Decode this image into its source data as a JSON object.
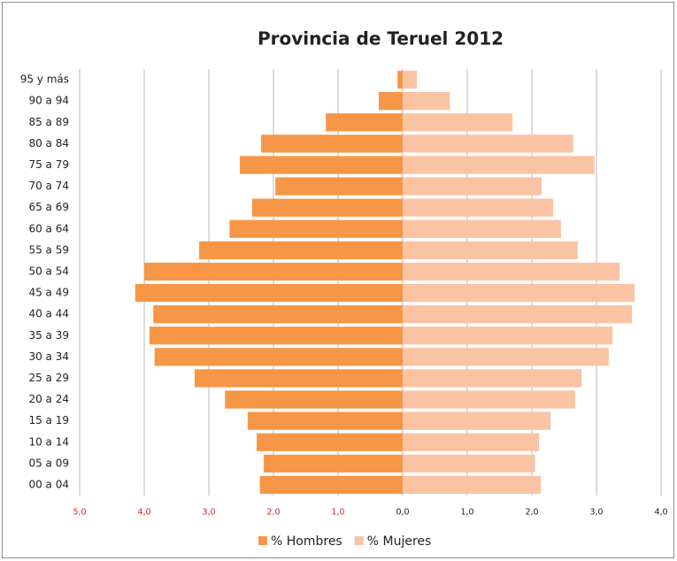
{
  "chart_data": {
    "type": "pyramid",
    "title": "Provincia de Teruel 2012",
    "categories": [
      "00 a 04",
      "05 a 09",
      "10 a 14",
      "15 a 19",
      "20 a 24",
      "25 a 29",
      "30 a 34",
      "35 a 39",
      "40 a 44",
      "45 a 49",
      "50 a 54",
      "55 a 59",
      "60 a 64",
      "65 a 69",
      "70 a 74",
      "75 a 79",
      "80 a 84",
      "85 a 89",
      "90 a 94",
      "95 y más"
    ],
    "series": [
      {
        "name": "% Hombres",
        "color": "#f79646",
        "side": "left",
        "values": [
          2.21,
          2.15,
          2.26,
          2.4,
          2.75,
          3.22,
          3.84,
          3.92,
          3.86,
          4.14,
          4.0,
          3.15,
          2.68,
          2.33,
          1.97,
          2.52,
          2.19,
          1.19,
          0.37,
          0.08
        ]
      },
      {
        "name": "% Mujeres",
        "color": "#fac3a3",
        "side": "right",
        "values": [
          2.14,
          2.05,
          2.11,
          2.29,
          2.67,
          2.77,
          3.19,
          3.25,
          3.55,
          3.59,
          3.36,
          2.71,
          2.45,
          2.33,
          2.15,
          2.97,
          2.64,
          1.7,
          0.73,
          0.22
        ]
      }
    ],
    "xlim": [
      -5,
      4
    ],
    "xticks": [
      {
        "value": -5,
        "label": "5,0"
      },
      {
        "value": -4,
        "label": "4,0"
      },
      {
        "value": -3,
        "label": "3,0"
      },
      {
        "value": -2,
        "label": "2,0"
      },
      {
        "value": -1,
        "label": "1,0"
      },
      {
        "value": 0,
        "label": "0,0"
      },
      {
        "value": 1,
        "label": "1,0"
      },
      {
        "value": 2,
        "label": "2,0"
      },
      {
        "value": 3,
        "label": "3,0"
      },
      {
        "value": 4,
        "label": "4,0"
      }
    ],
    "grid": true,
    "legend": "bottom"
  }
}
